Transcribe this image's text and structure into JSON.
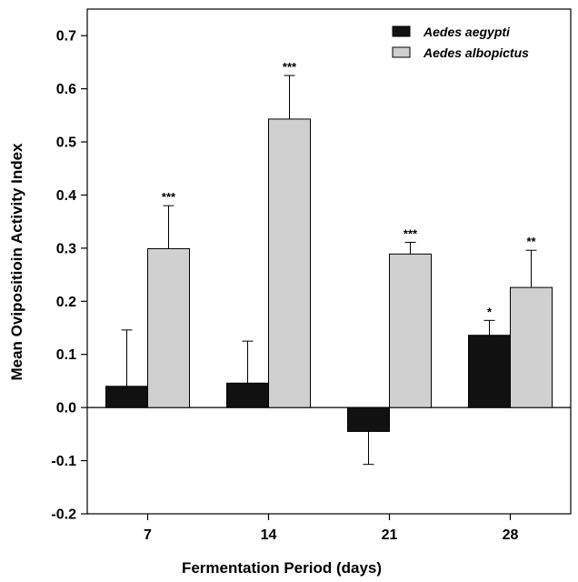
{
  "chart_data": {
    "type": "bar",
    "xlabel": "Fermentation Period (days)",
    "ylabel": "Mean Ovipositioin Activity Index",
    "categories": [
      "7",
      "14",
      "21",
      "28"
    ],
    "ylim": [
      -0.2,
      0.75
    ],
    "yticks": [
      "-0.2",
      "-0.1",
      "0.0",
      "0.1",
      "0.2",
      "0.3",
      "0.4",
      "0.5",
      "0.6",
      "0.7"
    ],
    "series": [
      {
        "name": "Aedes aegypti",
        "color": "#111111",
        "values": [
          0.04,
          0.046,
          -0.045,
          0.136
        ],
        "errors": [
          0.106,
          0.079,
          0.062,
          0.028
        ],
        "significance": [
          "",
          "",
          "",
          "*"
        ]
      },
      {
        "name": "Aedes albopictus",
        "color": "#d0d0d0",
        "values": [
          0.299,
          0.543,
          0.289,
          0.226
        ],
        "errors": [
          0.081,
          0.082,
          0.022,
          0.07
        ],
        "significance": [
          "***",
          "***",
          "***",
          "**"
        ]
      }
    ],
    "legend": "top-right",
    "grid": false
  }
}
